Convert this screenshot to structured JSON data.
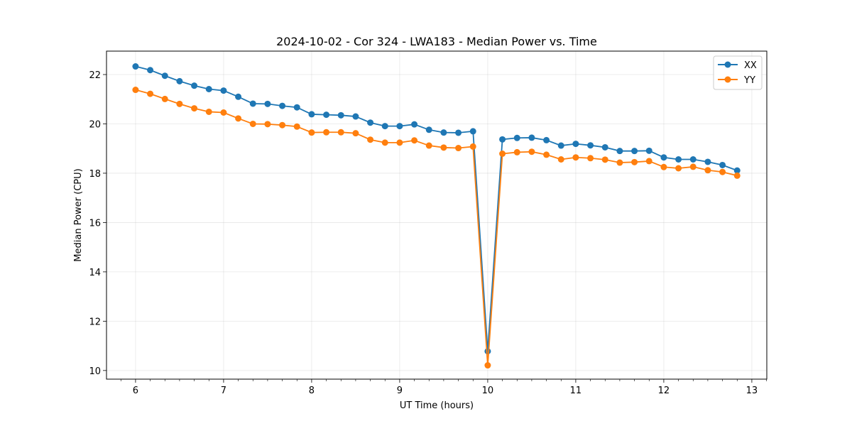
{
  "chart_data": {
    "type": "line",
    "title": "2024-10-02 - Cor 324 - LWA183 - Median Power vs. Time",
    "xlabel": "UT Time (hours)",
    "ylabel": "Median Power (CPU)",
    "xlim": [
      5.67,
      13.17
    ],
    "ylim": [
      9.65,
      22.95
    ],
    "xticks": [
      6,
      7,
      8,
      9,
      10,
      11,
      12,
      13
    ],
    "yticks": [
      10,
      12,
      14,
      16,
      18,
      20,
      22
    ],
    "grid": true,
    "legend_position": "top-right",
    "x": [
      6.0,
      6.1667,
      6.3333,
      6.5,
      6.6667,
      6.8333,
      7.0,
      7.1667,
      7.3333,
      7.5,
      7.6667,
      7.8333,
      8.0,
      8.1667,
      8.3333,
      8.5,
      8.6667,
      8.8333,
      9.0,
      9.1667,
      9.3333,
      9.5,
      9.6667,
      9.8333,
      10.0,
      10.1667,
      10.3333,
      10.5,
      10.6667,
      10.8333,
      11.0,
      11.1667,
      11.3333,
      11.5,
      11.6667,
      11.8333,
      12.0,
      12.1667,
      12.3333,
      12.5,
      12.6667,
      12.8333
    ],
    "series": [
      {
        "name": "XX",
        "color": "#1f77b4",
        "values": [
          22.33,
          22.18,
          21.95,
          21.73,
          21.55,
          21.41,
          21.35,
          21.1,
          20.82,
          20.81,
          20.73,
          20.67,
          20.39,
          20.37,
          20.35,
          20.3,
          20.05,
          19.91,
          19.91,
          19.98,
          19.76,
          19.65,
          19.64,
          19.7,
          10.78,
          19.37,
          19.43,
          19.44,
          19.34,
          19.12,
          19.19,
          19.13,
          19.05,
          18.9,
          18.9,
          18.91,
          18.64,
          18.56,
          18.56,
          18.46,
          18.33,
          18.11
        ]
      },
      {
        "name": "YY",
        "color": "#ff7f0e",
        "values": [
          21.38,
          21.22,
          21.01,
          20.81,
          20.63,
          20.49,
          20.46,
          20.22,
          20.0,
          19.99,
          19.95,
          19.89,
          19.65,
          19.66,
          19.66,
          19.62,
          19.36,
          19.24,
          19.24,
          19.33,
          19.12,
          19.04,
          19.02,
          19.08,
          10.21,
          18.79,
          18.85,
          18.87,
          18.75,
          18.56,
          18.64,
          18.61,
          18.55,
          18.43,
          18.45,
          18.49,
          18.25,
          18.2,
          18.26,
          18.12,
          18.05,
          17.9
        ]
      }
    ]
  }
}
